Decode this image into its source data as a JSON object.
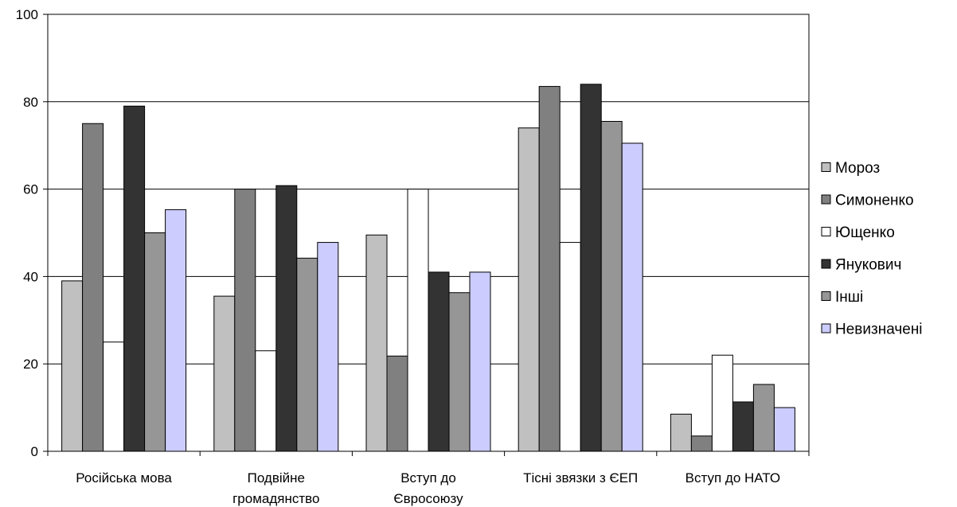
{
  "chart_data": {
    "type": "bar",
    "title": "",
    "xlabel": "",
    "ylabel": "",
    "ylim": [
      0,
      100
    ],
    "yticks": [
      0,
      20,
      40,
      60,
      80,
      100
    ],
    "grid": true,
    "legend_position": "right",
    "categories": [
      [
        "Російська мова"
      ],
      [
        "Подвійне",
        "громадянство"
      ],
      [
        "Вступ до",
        "Євросоюзу"
      ],
      [
        "Тісні звязки з ЄЕП"
      ],
      [
        "Вступ до НАТО"
      ]
    ],
    "series": [
      {
        "name": "Мороз",
        "color": "#c0c0c0",
        "values": [
          39,
          35.5,
          49.5,
          74,
          8.5
        ]
      },
      {
        "name": "Симоненко",
        "color": "#808080",
        "values": [
          75,
          60,
          21.8,
          83.5,
          3.5
        ]
      },
      {
        "name": "Ющенко",
        "color": "#ffffff",
        "values": [
          25,
          23,
          60,
          47.8,
          22
        ]
      },
      {
        "name": "Янукович",
        "color": "#333333",
        "values": [
          79,
          60.8,
          41,
          84,
          11.3
        ]
      },
      {
        "name": "Інші",
        "color": "#969696",
        "values": [
          50,
          44.2,
          36.3,
          75.5,
          15.3
        ]
      },
      {
        "name": "Невизначені",
        "color": "#ccccff",
        "values": [
          55.3,
          47.8,
          41,
          70.5,
          10
        ]
      }
    ]
  }
}
